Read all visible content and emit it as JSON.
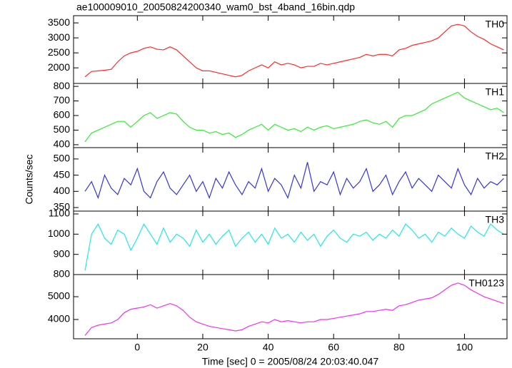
{
  "chart_data": [
    {
      "type": "line",
      "title": "ae100009010_20050824200340_wam0_bst_4band_16bin.qdp",
      "x": [
        -16,
        -14,
        -12,
        -10,
        -8,
        -6,
        -4,
        -2,
        0,
        2,
        4,
        6,
        8,
        10,
        12,
        14,
        16,
        18,
        20,
        22,
        24,
        26,
        28,
        30,
        32,
        34,
        36,
        38,
        40,
        42,
        44,
        46,
        48,
        50,
        52,
        54,
        56,
        58,
        60,
        62,
        64,
        66,
        68,
        70,
        72,
        74,
        76,
        78,
        80,
        82,
        84,
        86,
        88,
        90,
        92,
        94,
        96,
        98,
        100,
        102,
        104,
        106,
        108,
        110,
        112
      ],
      "series": [
        {
          "name": "TH0",
          "color": "#ff2a2a",
          "values": [
            1700,
            1880,
            1900,
            1920,
            1950,
            2200,
            2400,
            2500,
            2550,
            2650,
            2700,
            2620,
            2600,
            2700,
            2600,
            2400,
            2200,
            2000,
            1900,
            1900,
            1850,
            1800,
            1750,
            1700,
            1750,
            1900,
            2000,
            2100,
            2000,
            2200,
            2100,
            2150,
            2100,
            2000,
            2050,
            2050,
            2150,
            2100,
            2150,
            2200,
            2250,
            2300,
            2350,
            2450,
            2400,
            2450,
            2450,
            2400,
            2600,
            2650,
            2750,
            2800,
            2850,
            2900,
            3000,
            3200,
            3400,
            3450,
            3400,
            3200,
            3050,
            2950,
            2800,
            2700,
            2600
          ]
        }
      ],
      "xlim": [
        -19.5,
        113
      ],
      "xticks": [
        0,
        20,
        40,
        60,
        80,
        100
      ],
      "ylim": [
        1480,
        3740
      ],
      "yticks": [
        2000,
        2500,
        3000,
        3500
      ]
    },
    {
      "type": "line",
      "x": [
        -16,
        -14,
        -12,
        -10,
        -8,
        -6,
        -4,
        -2,
        0,
        2,
        4,
        6,
        8,
        10,
        12,
        14,
        16,
        18,
        20,
        22,
        24,
        26,
        28,
        30,
        32,
        34,
        36,
        38,
        40,
        42,
        44,
        46,
        48,
        50,
        52,
        54,
        56,
        58,
        60,
        62,
        64,
        66,
        68,
        70,
        72,
        74,
        76,
        78,
        80,
        82,
        84,
        86,
        88,
        90,
        92,
        94,
        96,
        98,
        100,
        102,
        104,
        106,
        108,
        110,
        112
      ],
      "series": [
        {
          "name": "TH1",
          "color": "#33ee33",
          "values": [
            420,
            480,
            500,
            520,
            540,
            560,
            560,
            520,
            560,
            600,
            620,
            580,
            600,
            620,
            610,
            560,
            520,
            500,
            500,
            480,
            490,
            470,
            480,
            450,
            470,
            500,
            520,
            540,
            500,
            540,
            520,
            500,
            510,
            490,
            520,
            500,
            520,
            530,
            510,
            520,
            530,
            540,
            560,
            570,
            550,
            540,
            560,
            520,
            580,
            600,
            600,
            620,
            640,
            680,
            700,
            720,
            740,
            760,
            720,
            700,
            680,
            660,
            640,
            650,
            620
          ]
        }
      ],
      "xlim": [
        -19.5,
        113
      ],
      "xticks": [
        0,
        20,
        40,
        60,
        80,
        100
      ],
      "ylim": [
        380,
        820
      ],
      "yticks": [
        400,
        500,
        600,
        700,
        800
      ]
    },
    {
      "type": "line",
      "ylabel": "Counts/sec",
      "x": [
        -16,
        -14,
        -12,
        -10,
        -8,
        -6,
        -4,
        -2,
        0,
        2,
        4,
        6,
        8,
        10,
        12,
        14,
        16,
        18,
        20,
        22,
        24,
        26,
        28,
        30,
        32,
        34,
        36,
        38,
        40,
        42,
        44,
        46,
        48,
        50,
        52,
        54,
        56,
        58,
        60,
        62,
        64,
        66,
        68,
        70,
        72,
        74,
        76,
        78,
        80,
        82,
        84,
        86,
        88,
        90,
        92,
        94,
        96,
        98,
        100,
        102,
        104,
        106,
        108,
        110,
        112
      ],
      "series": [
        {
          "name": "TH2",
          "color": "#3535dd",
          "values": [
            400,
            430,
            380,
            450,
            410,
            390,
            440,
            420,
            470,
            400,
            380,
            430,
            460,
            410,
            390,
            420,
            450,
            400,
            430,
            380,
            440,
            410,
            460,
            420,
            390,
            430,
            410,
            470,
            400,
            440,
            420,
            380,
            450,
            410,
            490,
            400,
            430,
            420,
            460,
            390,
            440,
            410,
            430,
            470,
            400,
            420,
            450,
            390,
            430,
            460,
            410,
            440,
            420,
            400,
            450,
            430,
            410,
            470,
            420,
            390,
            440,
            410,
            430,
            420,
            440
          ]
        }
      ],
      "xlim": [
        -19.5,
        113
      ],
      "xticks": [
        0,
        20,
        40,
        60,
        80,
        100
      ],
      "ylim": [
        339,
        535
      ],
      "yticks": [
        350,
        400,
        450,
        500
      ]
    },
    {
      "type": "line",
      "x": [
        -16,
        -14,
        -12,
        -10,
        -8,
        -6,
        -4,
        -2,
        0,
        2,
        4,
        6,
        8,
        10,
        12,
        14,
        16,
        18,
        20,
        22,
        24,
        26,
        28,
        30,
        32,
        34,
        36,
        38,
        40,
        42,
        44,
        46,
        48,
        50,
        52,
        54,
        56,
        58,
        60,
        62,
        64,
        66,
        68,
        70,
        72,
        74,
        76,
        78,
        80,
        82,
        84,
        86,
        88,
        90,
        92,
        94,
        96,
        98,
        100,
        102,
        104,
        106,
        108,
        110,
        112
      ],
      "series": [
        {
          "name": "TH3",
          "color": "#22e8e8",
          "values": [
            820,
            1000,
            1050,
            980,
            950,
            1020,
            1000,
            920,
            980,
            1050,
            1000,
            950,
            1030,
            960,
            1000,
            980,
            940,
            1020,
            960,
            1000,
            950,
            990,
            1020,
            940,
            980,
            1010,
            960,
            1000,
            950,
            1030,
            980,
            1000,
            960,
            1010,
            970,
            1000,
            940,
            990,
            1020,
            980,
            960,
            1000,
            990,
            1010,
            970,
            1000,
            980,
            1020,
            990,
            1050,
            1020,
            980,
            1000,
            960,
            1010,
            990,
            1030,
            1000,
            980,
            1040,
            1010,
            990,
            1050,
            1020,
            1000
          ]
        }
      ],
      "xlim": [
        -19.5,
        113
      ],
      "xticks": [
        0,
        20,
        40,
        60,
        80,
        100
      ],
      "ylim": [
        800,
        1114
      ],
      "yticks": [
        800,
        900,
        1000,
        1100
      ]
    },
    {
      "type": "line",
      "xlabel": "Time [sec] 0 = 2005/08/24 20:03:40.047",
      "x": [
        -16,
        -14,
        -12,
        -10,
        -8,
        -6,
        -4,
        -2,
        0,
        2,
        4,
        6,
        8,
        10,
        12,
        14,
        16,
        18,
        20,
        22,
        24,
        26,
        28,
        30,
        32,
        34,
        36,
        38,
        40,
        42,
        44,
        46,
        48,
        50,
        52,
        54,
        56,
        58,
        60,
        62,
        64,
        66,
        68,
        70,
        72,
        74,
        76,
        78,
        80,
        82,
        84,
        86,
        88,
        90,
        92,
        94,
        96,
        98,
        100,
        102,
        104,
        106,
        108,
        110,
        112
      ],
      "series": [
        {
          "name": "TH0123",
          "color": "#ee33ee",
          "values": [
            3300,
            3650,
            3750,
            3800,
            3850,
            4000,
            4300,
            4450,
            4500,
            4550,
            4650,
            4500,
            4600,
            4700,
            4600,
            4400,
            4100,
            3900,
            3800,
            3700,
            3650,
            3600,
            3550,
            3500,
            3550,
            3700,
            3800,
            3900,
            3850,
            4000,
            3900,
            3950,
            3900,
            3850,
            3900,
            3900,
            4000,
            4000,
            4050,
            4100,
            4150,
            4200,
            4250,
            4350,
            4350,
            4400,
            4450,
            4400,
            4600,
            4650,
            4750,
            4850,
            4900,
            4950,
            5100,
            5300,
            5500,
            5600,
            5500,
            5300,
            5150,
            5000,
            4900,
            4800,
            4700
          ]
        }
      ],
      "xlim": [
        -19.5,
        113
      ],
      "xticks": [
        0,
        20,
        40,
        60,
        80,
        100
      ],
      "ylim": [
        3156,
        5970
      ],
      "yticks": [
        4000,
        5000
      ]
    }
  ]
}
